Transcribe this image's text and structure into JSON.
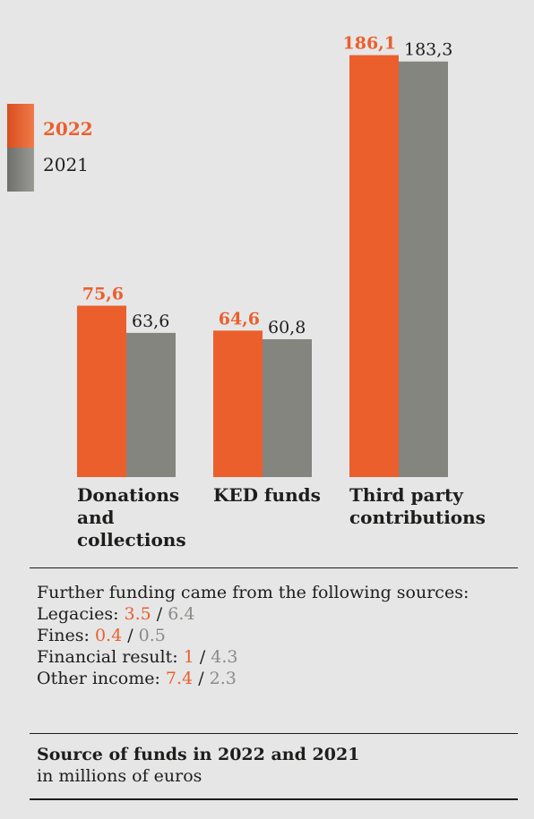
{
  "chart_data": {
    "type": "bar",
    "categories": [
      "Donations and collections",
      "KED funds",
      "Third party contributions"
    ],
    "series": [
      {
        "name": "2022",
        "values": [
          75.6,
          64.6,
          186.1
        ],
        "labels": [
          "75,6",
          "64,6",
          "186,1"
        ],
        "color": "#eb5f2c"
      },
      {
        "name": "2021",
        "values": [
          63.6,
          60.8,
          183.3
        ],
        "labels": [
          "63,6",
          "60,8",
          "183,3"
        ],
        "color": "#858580"
      }
    ],
    "title": "Source of funds in 2022 and 2021",
    "subtitle": "in millions of euros",
    "ylabel": "",
    "xlabel": "",
    "ylim": [
      0,
      200
    ],
    "legend_position": "top-left",
    "grid": false
  },
  "further_funding": {
    "intro": "Further funding came from the following sources:",
    "separator": "/",
    "items": [
      {
        "label": "Legacies:",
        "value_2022": "3.5",
        "value_2021": "6.4"
      },
      {
        "label": "Fines:",
        "value_2022": "0.4",
        "value_2021": "0.5"
      },
      {
        "label": "Financial result:",
        "value_2022": "1",
        "value_2021": "4.3"
      },
      {
        "label": "Other income:",
        "value_2022": "7.4",
        "value_2021": "2.3"
      }
    ]
  },
  "colors": {
    "accent": "#eb5f2c",
    "grey": "#858580",
    "background": "#e6e6e7"
  }
}
